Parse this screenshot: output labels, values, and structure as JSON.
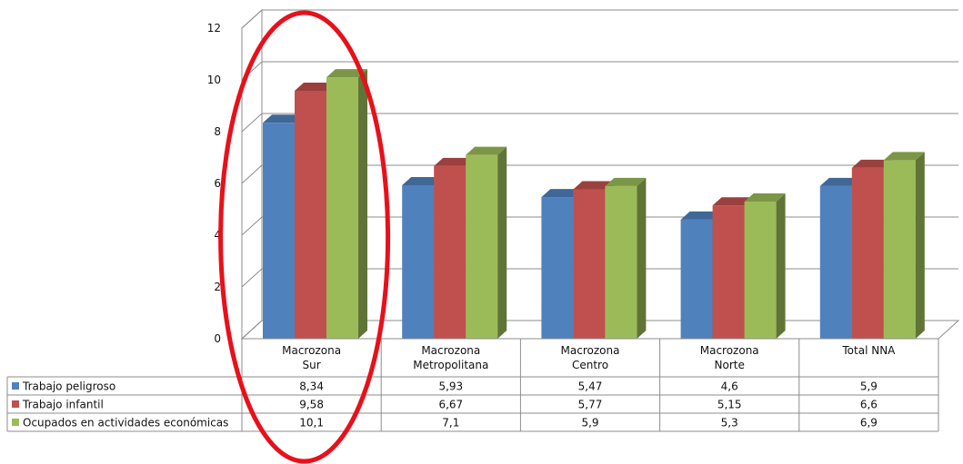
{
  "chart_data": {
    "type": "bar",
    "ylim": [
      0,
      12
    ],
    "yticks": [
      "0",
      "2",
      "4",
      "6",
      "8",
      "10",
      "12"
    ],
    "grid": true,
    "legend": "data-table-left",
    "categories": [
      [
        "Macrozona",
        "Sur"
      ],
      [
        "Macrozona",
        "Metropolitana"
      ],
      [
        "Macrozona",
        "Centro"
      ],
      [
        "Macrozona",
        "Norte"
      ],
      [
        "Total NNA"
      ]
    ],
    "series": [
      {
        "name": "Trabajo peligroso",
        "color": "#4f81bd",
        "values": [
          8.34,
          5.93,
          5.47,
          4.6,
          5.9
        ],
        "labels": [
          "8,34",
          "5,93",
          "5,47",
          "4,6",
          "5,9"
        ]
      },
      {
        "name": "Trabajo infantil",
        "color": "#c0504d",
        "values": [
          9.58,
          6.67,
          5.77,
          5.15,
          6.6
        ],
        "labels": [
          "9,58",
          "6,67",
          "5,77",
          "5,15",
          "6,6"
        ]
      },
      {
        "name": "Ocupados en actividades económicas",
        "color": "#9bbb59",
        "values": [
          10.1,
          7.1,
          5.9,
          5.3,
          6.9
        ],
        "labels": [
          "10,1",
          "7,1",
          "5,9",
          "5,3",
          "6,9"
        ]
      }
    ],
    "highlight": {
      "category_index": 0,
      "shape": "ellipse",
      "color": "#e8101a"
    }
  }
}
